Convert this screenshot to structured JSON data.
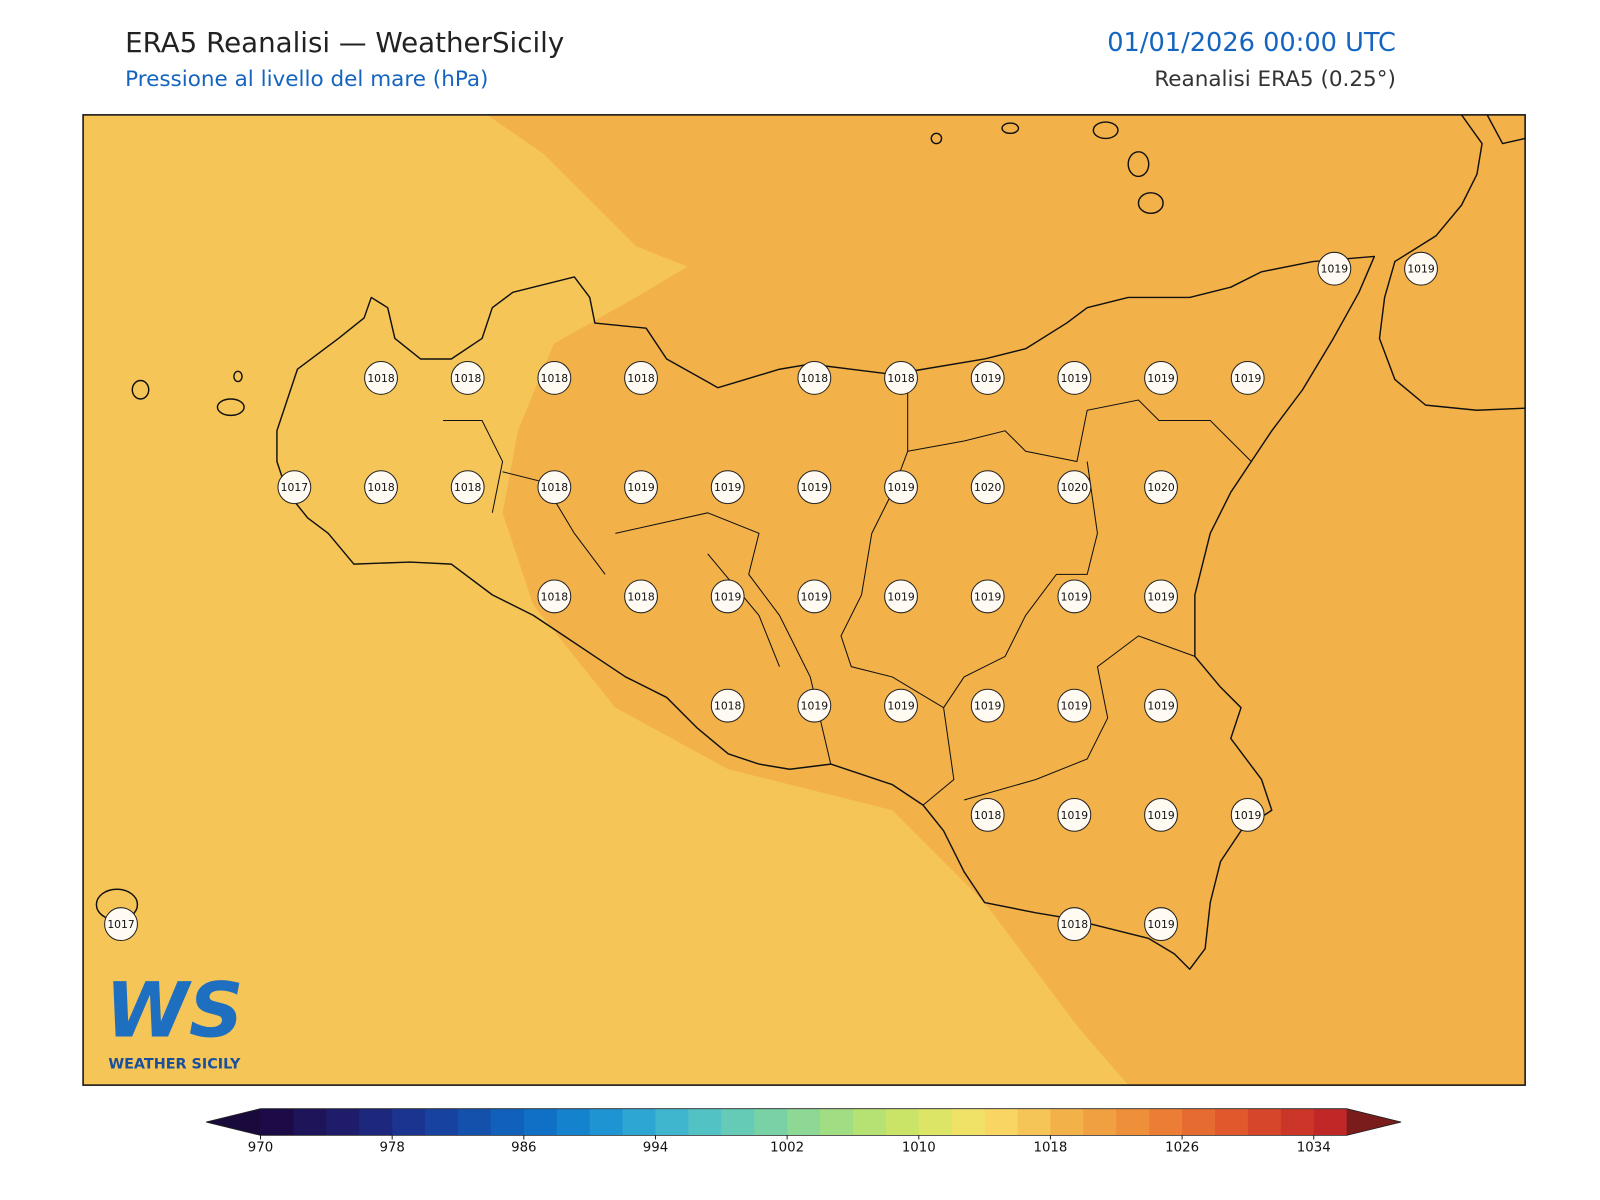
{
  "header": {
    "title": "ERA5 Reanalisi — WeatherSicily",
    "subtitle": "Pressione al livello del mare (hPa)",
    "datetime": "01/01/2026 00:00 UTC",
    "source": "Reanalisi ERA5 (0.25°)"
  },
  "stations": [
    1019,
    1019,
    1018,
    1018,
    1018,
    1018,
    1018,
    1018,
    1019,
    1019,
    1019,
    1019,
    1017,
    1018,
    1018,
    1018,
    1019,
    1019,
    1019,
    1019,
    1020,
    1020,
    1020,
    1018,
    1018,
    1019,
    1019,
    1019,
    1019,
    1019,
    1019,
    1018,
    1019,
    1019,
    1019,
    1019,
    1019,
    1018,
    1019,
    1019,
    1019,
    1017,
    1018,
    1019
  ],
  "logo": {
    "mark": "WS",
    "name": "WEATHER SICILY"
  },
  "colorbar": {
    "lim": [
      970,
      1036
    ],
    "ticks": [
      970,
      978,
      986,
      994,
      1002,
      1010,
      1018,
      1026,
      1034
    ],
    "under": "#1a0a3c",
    "over": "#7a1c1c",
    "colors": [
      "#1c0b47",
      "#1e1459",
      "#1f1d6b",
      "#1d277e",
      "#1a3490",
      "#17429f",
      "#1451ad",
      "#1160ba",
      "#0f70c5",
      "#1482cd",
      "#1f94d2",
      "#2ea6d3",
      "#3fb6ce",
      "#52c2c4",
      "#65cbb6",
      "#78d2a5",
      "#8cd894",
      "#a1dd82",
      "#b6e173",
      "#cae468",
      "#dde566",
      "#f0e267",
      "#f9d663",
      "#f6c558",
      "#f3b149",
      "#f0a040",
      "#ee8f3a",
      "#eb7d35",
      "#e66b30",
      "#e0582c",
      "#d6462a",
      "#cc3629",
      "#c02828"
    ]
  }
}
